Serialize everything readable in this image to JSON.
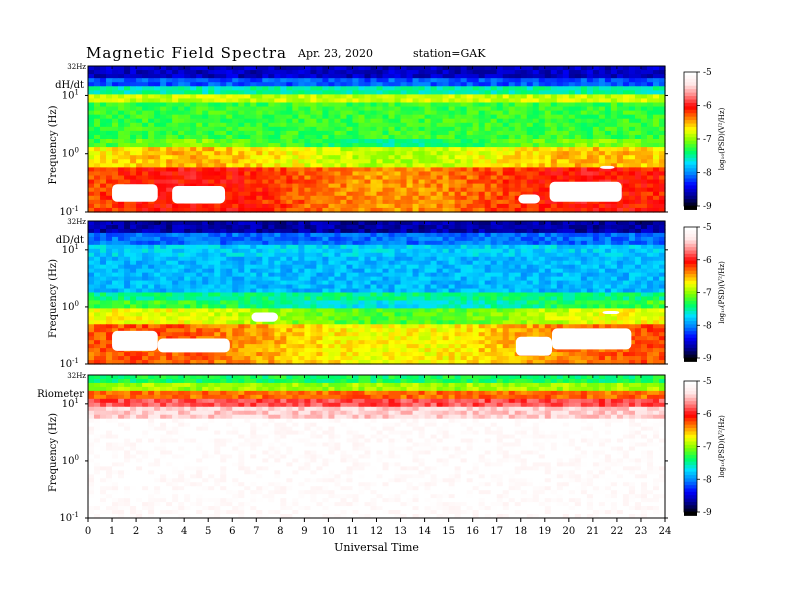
{
  "header": {
    "title": "Magnetic  Field  Spectra",
    "date": "Apr. 23, 2020",
    "station": "station=GAK"
  },
  "chart_data": [
    {
      "type": "heatmap",
      "panel_label": "dH/dt",
      "top_label": "32Hz",
      "ylabel": "Frequency  (Hz)",
      "ytick_labels": [
        {
          "base": "10",
          "exp": "1"
        },
        {
          "base": "10",
          "exp": "0"
        },
        {
          "base": "10",
          "exp": "-1"
        }
      ],
      "y_scale": "log",
      "ylim": [
        0.1,
        32
      ],
      "xlim": [
        0,
        24
      ],
      "colorbar": {
        "label": "log₁₀(PSD)(V²/Hz)",
        "ticks": [
          "-5",
          "-6",
          "-7",
          "-8",
          "-9"
        ],
        "range": [
          -9,
          -5
        ]
      },
      "white_regions": [
        {
          "t0": 1.0,
          "t1": 2.9,
          "f0": 0.15,
          "f1": 0.3
        },
        {
          "t0": 3.5,
          "t1": 5.7,
          "f0": 0.14,
          "f1": 0.28
        },
        {
          "t0": 17.9,
          "t1": 18.8,
          "f0": 0.14,
          "f1": 0.2
        },
        {
          "t0": 19.2,
          "t1": 22.2,
          "f0": 0.15,
          "f1": 0.33
        },
        {
          "t0": 21.3,
          "t1": 21.9,
          "f0": 0.55,
          "f1": 0.62
        }
      ]
    },
    {
      "type": "heatmap",
      "panel_label": "dD/dt",
      "top_label": "32Hz",
      "ylabel": "Frequency  (Hz)",
      "ytick_labels": [
        {
          "base": "10",
          "exp": "1"
        },
        {
          "base": "10",
          "exp": "0"
        },
        {
          "base": "10",
          "exp": "-1"
        }
      ],
      "y_scale": "log",
      "ylim": [
        0.1,
        32
      ],
      "xlim": [
        0,
        24
      ],
      "colorbar": {
        "label": "log₁₀(PSD)(V²/Hz)",
        "ticks": [
          "-5",
          "-6",
          "-7",
          "-8",
          "-9"
        ],
        "range": [
          -9,
          -5
        ]
      },
      "white_regions": [
        {
          "t0": 1.0,
          "t1": 2.9,
          "f0": 0.17,
          "f1": 0.38
        },
        {
          "t0": 2.9,
          "t1": 5.9,
          "f0": 0.16,
          "f1": 0.28
        },
        {
          "t0": 6.8,
          "t1": 7.9,
          "f0": 0.55,
          "f1": 0.8
        },
        {
          "t0": 17.8,
          "t1": 19.3,
          "f0": 0.14,
          "f1": 0.3
        },
        {
          "t0": 19.3,
          "t1": 22.6,
          "f0": 0.18,
          "f1": 0.42
        },
        {
          "t0": 21.4,
          "t1": 22.1,
          "f0": 0.75,
          "f1": 0.85
        }
      ]
    },
    {
      "type": "heatmap",
      "panel_label": "Riometer",
      "top_label": "32Hz",
      "ylabel": "Frequency  (Hz)",
      "ytick_labels": [
        {
          "base": "10",
          "exp": "1"
        },
        {
          "base": "10",
          "exp": "0"
        },
        {
          "base": "10",
          "exp": "-1"
        }
      ],
      "y_scale": "log",
      "ylim": [
        0.1,
        32
      ],
      "xlim": [
        0,
        24
      ],
      "colorbar": {
        "label": "log₁₀(PSD)(V²/Hz)",
        "ticks": [
          "-5",
          "-6",
          "-7",
          "-8",
          "-9"
        ],
        "range": [
          -9,
          -5
        ]
      },
      "white_regions": []
    }
  ],
  "xaxis": {
    "ticks": [
      "0",
      "1",
      "2",
      "3",
      "4",
      "5",
      "6",
      "7",
      "8",
      "9",
      "10",
      "11",
      "12",
      "13",
      "14",
      "15",
      "16",
      "17",
      "18",
      "19",
      "20",
      "21",
      "22",
      "23",
      "24"
    ],
    "label": "Universal  Time"
  },
  "colors": {
    "colormap": [
      "#000000",
      "#000090",
      "#0000ff",
      "#0080ff",
      "#00e0ff",
      "#00ff60",
      "#80ff00",
      "#ffff00",
      "#ff8000",
      "#ff0000",
      "#ff8080",
      "#ffe6e6",
      "#ffffff"
    ]
  }
}
